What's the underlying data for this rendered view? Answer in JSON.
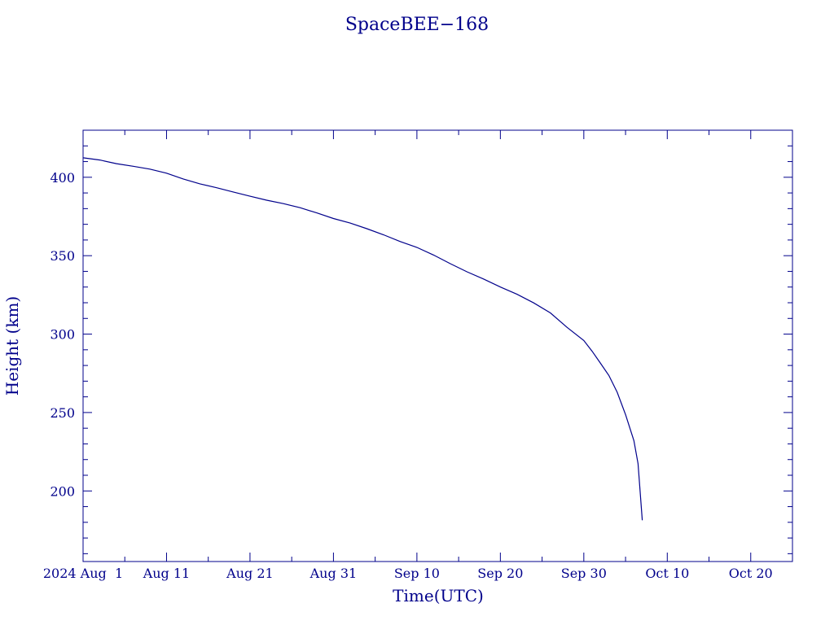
{
  "chart_data": {
    "type": "line",
    "title": "SpaceBEE−168",
    "xlabel": "Time(UTC)",
    "ylabel": "Height (km)",
    "color": "#00008b",
    "grid": false,
    "xlim": [
      "2024-08-01",
      "2024-10-25"
    ],
    "ylim": [
      155,
      430
    ],
    "xticks": [
      {
        "date": "2024-08-01",
        "label": "2024 Aug  1"
      },
      {
        "date": "2024-08-11",
        "label": "Aug 11"
      },
      {
        "date": "2024-08-21",
        "label": "Aug 21"
      },
      {
        "date": "2024-08-31",
        "label": "Aug 31"
      },
      {
        "date": "2024-09-10",
        "label": "Sep 10"
      },
      {
        "date": "2024-09-20",
        "label": "Sep 20"
      },
      {
        "date": "2024-09-30",
        "label": "Sep 30"
      },
      {
        "date": "2024-10-10",
        "label": "Oct 10"
      },
      {
        "date": "2024-10-20",
        "label": "Oct 20"
      }
    ],
    "yticks": [
      {
        "value": 200,
        "label": "200"
      },
      {
        "value": 250,
        "label": "250"
      },
      {
        "value": 300,
        "label": "300"
      },
      {
        "value": 350,
        "label": "350"
      },
      {
        "value": 400,
        "label": "400"
      }
    ],
    "series": [
      {
        "x": [
          "2024-08-01",
          "2024-08-03",
          "2024-08-05",
          "2024-08-07",
          "2024-08-09",
          "2024-08-11",
          "2024-08-13",
          "2024-08-15",
          "2024-08-17",
          "2024-08-19",
          "2024-08-21",
          "2024-08-23",
          "2024-08-25",
          "2024-08-27",
          "2024-08-29",
          "2024-08-31",
          "2024-09-02",
          "2024-09-04",
          "2024-09-06",
          "2024-09-08",
          "2024-09-10",
          "2024-09-12",
          "2024-09-14",
          "2024-09-16",
          "2024-09-18",
          "2024-09-20",
          "2024-09-22",
          "2024-09-24",
          "2024-09-26",
          "2024-09-28",
          "2024-09-30",
          "2024-10-01",
          "2024-10-02",
          "2024-10-03",
          "2024-10-04",
          "2024-10-05",
          "2024-10-06",
          "2024-10-06T12:00",
          "2024-10-07"
        ],
        "values": [
          412.4,
          411,
          408.7,
          407,
          405.2,
          402.6,
          398.9,
          395.8,
          393.3,
          390.6,
          387.9,
          385.4,
          383.2,
          380.6,
          377.3,
          373.7,
          370.8,
          367.2,
          363.3,
          359,
          355.3,
          350.4,
          344.9,
          339.7,
          335.1,
          330,
          325.4,
          319.9,
          313.5,
          304.3,
          295.9,
          289,
          281.4,
          273.6,
          262.9,
          248.6,
          232.1,
          217.4,
          181.3
        ]
      }
    ]
  }
}
